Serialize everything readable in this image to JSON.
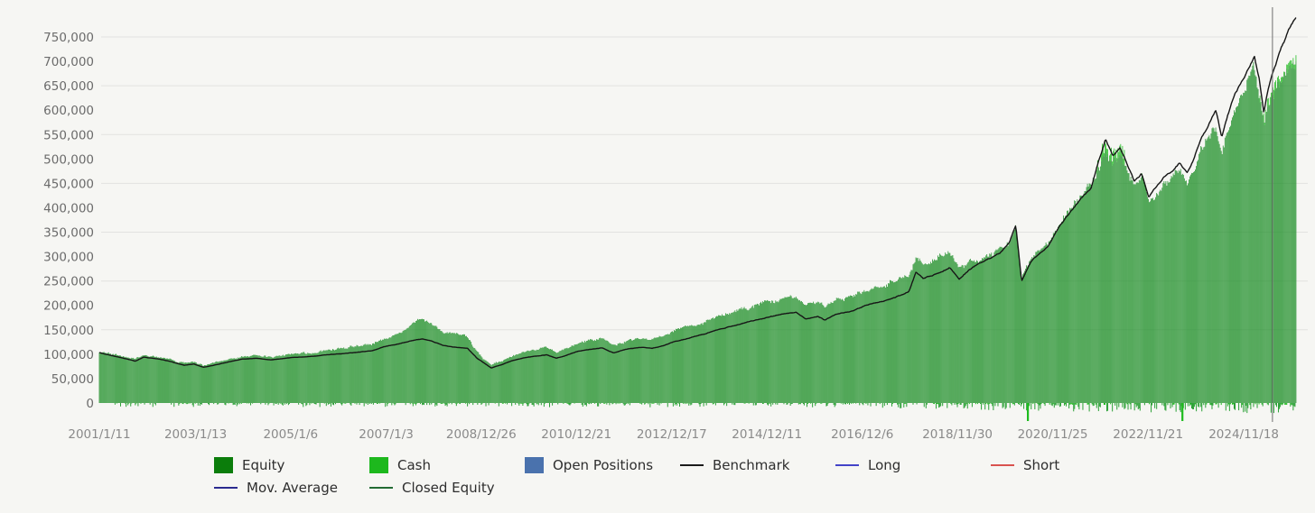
{
  "chart_data": {
    "type": "bar+line",
    "title": "",
    "description": "Portfolio equity curve (green bars) vs benchmark (black line), weekly, 2001-2025",
    "y_unit": "account value",
    "y_min": -40000,
    "y_max": 790000,
    "y_tick_step": 50000,
    "y_tick_labels": [
      "0",
      "50,000",
      "100,000",
      "150,000",
      "200,000",
      "250,000",
      "300,000",
      "350,000",
      "400,000",
      "450,000",
      "500,000",
      "550,000",
      "600,000",
      "650,000",
      "700,000",
      "750,000"
    ],
    "gridline_values": [
      150000,
      250000,
      350000,
      450000,
      550000,
      650000,
      750000
    ],
    "x_ticks": [
      {
        "label": "2001/1/11",
        "year": 2001.027
      },
      {
        "label": "2003/1/13",
        "year": 2003.033
      },
      {
        "label": "2005/1/6",
        "year": 2005.014
      },
      {
        "label": "2007/1/3",
        "year": 2007.005
      },
      {
        "label": "2008/12/26",
        "year": 2008.986
      },
      {
        "label": "2010/12/21",
        "year": 2010.97
      },
      {
        "label": "2012/12/17",
        "year": 2012.959
      },
      {
        "label": "2014/12/11",
        "year": 2014.943
      },
      {
        "label": "2016/12/6",
        "year": 2016.929
      },
      {
        "label": "2018/11/30",
        "year": 2018.912
      },
      {
        "label": "2020/11/25",
        "year": 2020.898
      },
      {
        "label": "2022/11/21",
        "year": 2022.886
      },
      {
        "label": "2024/11/18",
        "year": 2024.88
      }
    ],
    "x_end_year": 2025.97,
    "cursor_year": 2025.48,
    "series": [
      {
        "name": "Equity",
        "type": "bar",
        "color": "#1f8f29",
        "points": [
          [
            2001.03,
            106000
          ],
          [
            2001.3,
            100000
          ],
          [
            2001.6,
            94000
          ],
          [
            2001.78,
            90000
          ],
          [
            2001.95,
            98000
          ],
          [
            2002.3,
            94000
          ],
          [
            2002.55,
            88000
          ],
          [
            2002.8,
            82000
          ],
          [
            2003.0,
            84000
          ],
          [
            2003.2,
            77000
          ],
          [
            2003.45,
            83000
          ],
          [
            2003.7,
            89000
          ],
          [
            2004.0,
            95000
          ],
          [
            2004.3,
            98000
          ],
          [
            2004.6,
            94000
          ],
          [
            2005.0,
            100000
          ],
          [
            2005.4,
            103000
          ],
          [
            2005.8,
            108000
          ],
          [
            2006.0,
            111000
          ],
          [
            2006.4,
            116000
          ],
          [
            2006.7,
            120000
          ],
          [
            2007.0,
            133000
          ],
          [
            2007.3,
            146000
          ],
          [
            2007.55,
            160000
          ],
          [
            2007.75,
            172000
          ],
          [
            2007.95,
            163000
          ],
          [
            2008.2,
            146000
          ],
          [
            2008.45,
            140000
          ],
          [
            2008.7,
            136000
          ],
          [
            2008.9,
            105000
          ],
          [
            2009.05,
            90000
          ],
          [
            2009.2,
            78000
          ],
          [
            2009.4,
            86000
          ],
          [
            2009.6,
            96000
          ],
          [
            2009.85,
            104000
          ],
          [
            2010.1,
            110000
          ],
          [
            2010.35,
            113000
          ],
          [
            2010.55,
            105000
          ],
          [
            2010.8,
            113000
          ],
          [
            2011.0,
            122000
          ],
          [
            2011.25,
            128000
          ],
          [
            2011.5,
            132000
          ],
          [
            2011.75,
            118000
          ],
          [
            2012.0,
            127000
          ],
          [
            2012.3,
            133000
          ],
          [
            2012.55,
            131000
          ],
          [
            2012.8,
            139000
          ],
          [
            2013.0,
            148000
          ],
          [
            2013.3,
            157000
          ],
          [
            2013.6,
            166000
          ],
          [
            2013.9,
            177000
          ],
          [
            2014.2,
            186000
          ],
          [
            2014.5,
            194000
          ],
          [
            2014.8,
            202000
          ],
          [
            2015.0,
            208000
          ],
          [
            2015.3,
            214000
          ],
          [
            2015.55,
            217000
          ],
          [
            2015.75,
            200000
          ],
          [
            2016.0,
            207000
          ],
          [
            2016.15,
            197000
          ],
          [
            2016.4,
            212000
          ],
          [
            2016.7,
            219000
          ],
          [
            2017.0,
            231000
          ],
          [
            2017.3,
            241000
          ],
          [
            2017.6,
            250000
          ],
          [
            2017.9,
            262000
          ],
          [
            2018.05,
            298000
          ],
          [
            2018.2,
            285000
          ],
          [
            2018.4,
            295000
          ],
          [
            2018.6,
            305000
          ],
          [
            2018.75,
            310000
          ],
          [
            2018.95,
            278000
          ],
          [
            2019.15,
            290000
          ],
          [
            2019.4,
            295000
          ],
          [
            2019.6,
            300000
          ],
          [
            2019.8,
            312000
          ],
          [
            2020.0,
            330000
          ],
          [
            2020.13,
            360000
          ],
          [
            2020.25,
            258000
          ],
          [
            2020.45,
            295000
          ],
          [
            2020.6,
            310000
          ],
          [
            2020.8,
            325000
          ],
          [
            2021.0,
            368000
          ],
          [
            2021.25,
            400000
          ],
          [
            2021.5,
            428000
          ],
          [
            2021.7,
            446000
          ],
          [
            2021.85,
            482000
          ],
          [
            2022.0,
            516000
          ],
          [
            2022.15,
            488000
          ],
          [
            2022.3,
            505000
          ],
          [
            2022.45,
            475000
          ],
          [
            2022.6,
            445000
          ],
          [
            2022.75,
            458000
          ],
          [
            2022.9,
            412000
          ],
          [
            2023.05,
            430000
          ],
          [
            2023.2,
            448000
          ],
          [
            2023.4,
            462000
          ],
          [
            2023.55,
            474000
          ],
          [
            2023.7,
            452000
          ],
          [
            2023.85,
            480000
          ],
          [
            2024.0,
            520000
          ],
          [
            2024.15,
            545000
          ],
          [
            2024.3,
            570000
          ],
          [
            2024.42,
            520000
          ],
          [
            2024.55,
            565000
          ],
          [
            2024.7,
            605000
          ],
          [
            2024.85,
            632000
          ],
          [
            2025.0,
            658000
          ],
          [
            2025.1,
            678000
          ],
          [
            2025.2,
            635000
          ],
          [
            2025.3,
            572000
          ],
          [
            2025.4,
            615000
          ],
          [
            2025.55,
            648000
          ],
          [
            2025.7,
            668000
          ],
          [
            2025.85,
            682000
          ],
          [
            2025.97,
            692000
          ]
        ]
      },
      {
        "name": "Benchmark",
        "type": "line",
        "color": "#161616",
        "points": [
          [
            2001.03,
            103000
          ],
          [
            2001.3,
            97000
          ],
          [
            2001.6,
            90000
          ],
          [
            2001.78,
            86000
          ],
          [
            2001.95,
            94000
          ],
          [
            2002.3,
            90000
          ],
          [
            2002.55,
            84000
          ],
          [
            2002.8,
            77000
          ],
          [
            2003.0,
            80000
          ],
          [
            2003.2,
            73000
          ],
          [
            2003.45,
            78000
          ],
          [
            2003.7,
            84000
          ],
          [
            2004.0,
            90000
          ],
          [
            2004.3,
            92000
          ],
          [
            2004.6,
            88000
          ],
          [
            2005.0,
            93000
          ],
          [
            2005.4,
            95000
          ],
          [
            2005.8,
            99000
          ],
          [
            2006.0,
            101000
          ],
          [
            2006.4,
            104000
          ],
          [
            2006.7,
            107000
          ],
          [
            2007.0,
            116000
          ],
          [
            2007.3,
            122000
          ],
          [
            2007.55,
            128000
          ],
          [
            2007.75,
            131000
          ],
          [
            2007.95,
            127000
          ],
          [
            2008.2,
            118000
          ],
          [
            2008.45,
            114000
          ],
          [
            2008.7,
            112000
          ],
          [
            2008.9,
            92000
          ],
          [
            2009.05,
            82000
          ],
          [
            2009.2,
            72000
          ],
          [
            2009.4,
            78000
          ],
          [
            2009.6,
            86000
          ],
          [
            2009.85,
            92000
          ],
          [
            2010.1,
            96000
          ],
          [
            2010.35,
            99000
          ],
          [
            2010.55,
            92000
          ],
          [
            2010.8,
            99000
          ],
          [
            2011.0,
            106000
          ],
          [
            2011.25,
            110000
          ],
          [
            2011.5,
            113000
          ],
          [
            2011.75,
            102000
          ],
          [
            2012.0,
            110000
          ],
          [
            2012.3,
            114000
          ],
          [
            2012.55,
            112000
          ],
          [
            2012.8,
            118000
          ],
          [
            2013.0,
            125000
          ],
          [
            2013.3,
            133000
          ],
          [
            2013.6,
            141000
          ],
          [
            2013.9,
            150000
          ],
          [
            2014.2,
            158000
          ],
          [
            2014.5,
            165000
          ],
          [
            2014.8,
            172000
          ],
          [
            2015.0,
            177000
          ],
          [
            2015.3,
            183000
          ],
          [
            2015.55,
            186000
          ],
          [
            2015.75,
            172000
          ],
          [
            2016.0,
            178000
          ],
          [
            2016.15,
            170000
          ],
          [
            2016.4,
            182000
          ],
          [
            2016.7,
            188000
          ],
          [
            2017.0,
            200000
          ],
          [
            2017.3,
            208000
          ],
          [
            2017.6,
            216000
          ],
          [
            2017.9,
            228000
          ],
          [
            2018.05,
            268000
          ],
          [
            2018.2,
            255000
          ],
          [
            2018.4,
            262000
          ],
          [
            2018.6,
            270000
          ],
          [
            2018.75,
            278000
          ],
          [
            2018.95,
            252000
          ],
          [
            2019.15,
            272000
          ],
          [
            2019.4,
            288000
          ],
          [
            2019.6,
            297000
          ],
          [
            2019.8,
            308000
          ],
          [
            2020.0,
            330000
          ],
          [
            2020.13,
            365000
          ],
          [
            2020.25,
            250000
          ],
          [
            2020.45,
            290000
          ],
          [
            2020.6,
            305000
          ],
          [
            2020.8,
            320000
          ],
          [
            2021.0,
            355000
          ],
          [
            2021.25,
            390000
          ],
          [
            2021.5,
            420000
          ],
          [
            2021.7,
            440000
          ],
          [
            2021.85,
            492000
          ],
          [
            2022.0,
            540000
          ],
          [
            2022.15,
            505000
          ],
          [
            2022.3,
            525000
          ],
          [
            2022.45,
            490000
          ],
          [
            2022.6,
            455000
          ],
          [
            2022.75,
            470000
          ],
          [
            2022.9,
            420000
          ],
          [
            2023.05,
            440000
          ],
          [
            2023.2,
            462000
          ],
          [
            2023.4,
            478000
          ],
          [
            2023.55,
            492000
          ],
          [
            2023.7,
            470000
          ],
          [
            2023.85,
            500000
          ],
          [
            2024.0,
            545000
          ],
          [
            2024.15,
            572000
          ],
          [
            2024.3,
            600000
          ],
          [
            2024.42,
            545000
          ],
          [
            2024.55,
            590000
          ],
          [
            2024.7,
            635000
          ],
          [
            2024.85,
            662000
          ],
          [
            2025.0,
            690000
          ],
          [
            2025.1,
            712000
          ],
          [
            2025.2,
            668000
          ],
          [
            2025.3,
            598000
          ],
          [
            2025.4,
            650000
          ],
          [
            2025.55,
            695000
          ],
          [
            2025.7,
            735000
          ],
          [
            2025.85,
            770000
          ],
          [
            2025.97,
            790000
          ]
        ]
      },
      {
        "name": "Cash",
        "type": "bar",
        "color": "#1ebc1e",
        "color_alt": "#2aa035",
        "positive_tip_zones": [
          {
            "from": 2021.8,
            "to": 2022.4,
            "max": 30000
          },
          {
            "from": 2025.2,
            "to": 2025.97,
            "max": 18000
          }
        ],
        "negative_envelope": [
          [
            2001.0,
            8000
          ],
          [
            2017.0,
            9000
          ],
          [
            2019.0,
            14000
          ],
          [
            2020.5,
            16000
          ],
          [
            2021.5,
            19000
          ],
          [
            2026.0,
            21000
          ]
        ],
        "negative_probability_early": 0.38,
        "negative_probability_late": 0.55,
        "negative_spikes": [
          {
            "year": 2020.38,
            "value": -37000
          },
          {
            "year": 2023.6,
            "value": -37000
          }
        ]
      }
    ],
    "series_in_legend_not_visible_on_plot": [
      "Open Positions",
      "Long",
      "Short",
      "Mov. Average",
      "Closed Equity"
    ],
    "legend_position": "bottom",
    "grid": "horizontal-only"
  },
  "legend": {
    "items": [
      {
        "label": "Equity",
        "swatch": "box",
        "color": "#0b7d0b"
      },
      {
        "label": "Cash",
        "swatch": "box",
        "color": "#1db81d"
      },
      {
        "label": "Open Positions",
        "swatch": "box",
        "color": "#4a72ad"
      },
      {
        "label": "Benchmark",
        "swatch": "line",
        "color": "#1a1a1a"
      },
      {
        "label": "Long",
        "swatch": "line",
        "color": "#4343c8"
      },
      {
        "label": "Short",
        "swatch": "line",
        "color": "#d9534f"
      },
      {
        "label": "Mov. Average",
        "swatch": "line",
        "color": "#2b2b8f"
      },
      {
        "label": "Closed Equity",
        "swatch": "line",
        "color": "#226b33"
      }
    ]
  },
  "style": {
    "background": "#f6f6f3",
    "gridline_color": "#e2e2e0",
    "y_label_color": "#6b6b6b",
    "x_label_color": "#8a8a8a",
    "cursor_color": "#6f6f6f"
  }
}
